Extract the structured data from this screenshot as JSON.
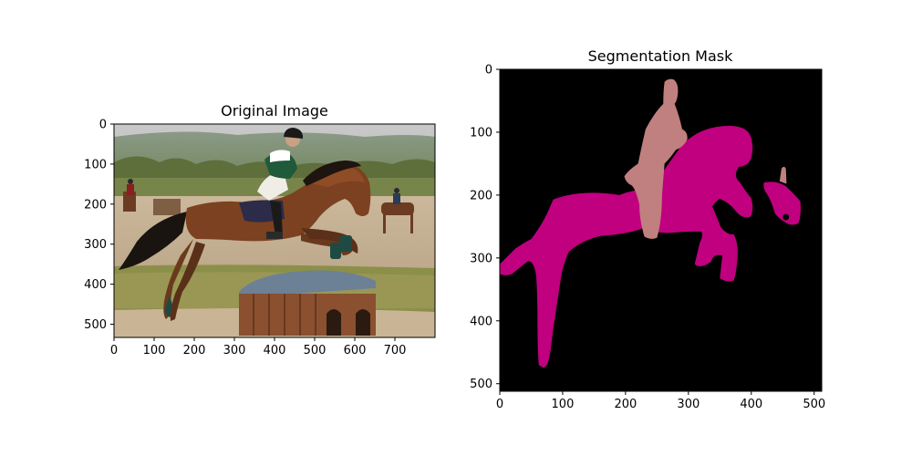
{
  "chart_data": [
    {
      "type": "image",
      "title": "Original Image",
      "xlim": [
        0,
        800
      ],
      "ylim": [
        533,
        0
      ],
      "xticks": [
        0,
        100,
        200,
        300,
        400,
        500,
        600,
        700
      ],
      "yticks": [
        0,
        100,
        200,
        300,
        400,
        500
      ]
    },
    {
      "type": "heatmap",
      "title": "Segmentation Mask",
      "xlim": [
        0,
        512
      ],
      "ylim": [
        512,
        0
      ],
      "xticks": [
        0,
        100,
        200,
        300,
        400,
        500
      ],
      "yticks": [
        0,
        100,
        200,
        300,
        400,
        500
      ],
      "mask_colors": {
        "background": "#000000",
        "horse": "#c0007f",
        "person": "#c0807f"
      }
    }
  ]
}
